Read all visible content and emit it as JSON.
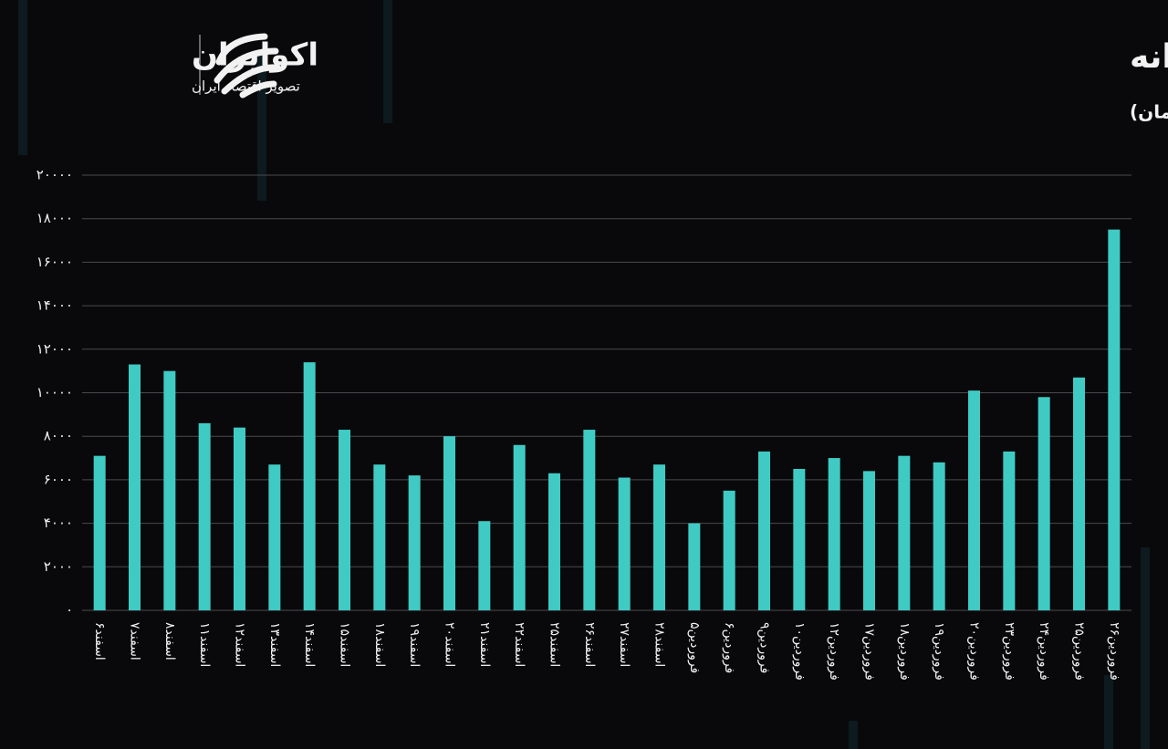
{
  "brand": {
    "name": "اکوایران",
    "tagline": "تصویر اقتصاد ایران"
  },
  "chart_data": {
    "type": "bar",
    "title": "روند ارزش معاملات خرد روزانه",
    "subtitle": "(واحد: میلیارد تومان)",
    "categories": [
      "اسفند۶",
      "اسفند۷",
      "اسفند۸",
      "اسفند۱۱",
      "اسفند۱۲",
      "اسفند۱۳",
      "اسفند۱۴",
      "اسفند۱۵",
      "اسفند۱۸",
      "اسفند۱۹",
      "اسفند۲۰",
      "اسفند۲۱",
      "اسفند۲۲",
      "اسفند۲۵",
      "اسفند۲۶",
      "اسفند۲۷",
      "اسفند۲۸",
      "فروردین۵",
      "فروردین۶",
      "فروردین۹",
      "فروردین۱۰",
      "فروردین۱۲",
      "فروردین۱۷",
      "فروردین۱۸",
      "فروردین۱۹",
      "فروردین۲۰",
      "فروردین۲۳",
      "فروردین۲۴",
      "فروردین۲۵",
      "فروردین۲۶"
    ],
    "values": [
      7100,
      11300,
      11000,
      8600,
      8400,
      6700,
      11400,
      8300,
      6700,
      6200,
      8000,
      4100,
      7600,
      6300,
      8300,
      6100,
      6700,
      4000,
      5500,
      7300,
      6500,
      7000,
      6400,
      7100,
      6800,
      10100,
      7300,
      9800,
      10700,
      17500
    ],
    "color": "#3fcbc4",
    "ylim": [
      0,
      20000
    ],
    "yticks": [
      {
        "value": 0,
        "label": "۰"
      },
      {
        "value": 2000,
        "label": "۲۰۰۰"
      },
      {
        "value": 4000,
        "label": "۴۰۰۰"
      },
      {
        "value": 6000,
        "label": "۶۰۰۰"
      },
      {
        "value": 8000,
        "label": "۸۰۰۰"
      },
      {
        "value": 10000,
        "label": "۱۰۰۰۰"
      },
      {
        "value": 12000,
        "label": "۱۲۰۰۰"
      },
      {
        "value": 14000,
        "label": "۱۴۰۰۰"
      },
      {
        "value": 16000,
        "label": "۱۶۰۰۰"
      },
      {
        "value": 18000,
        "label": "۱۸۰۰۰"
      },
      {
        "value": 20000,
        "label": "۲۰۰۰۰"
      }
    ],
    "grid": true
  }
}
